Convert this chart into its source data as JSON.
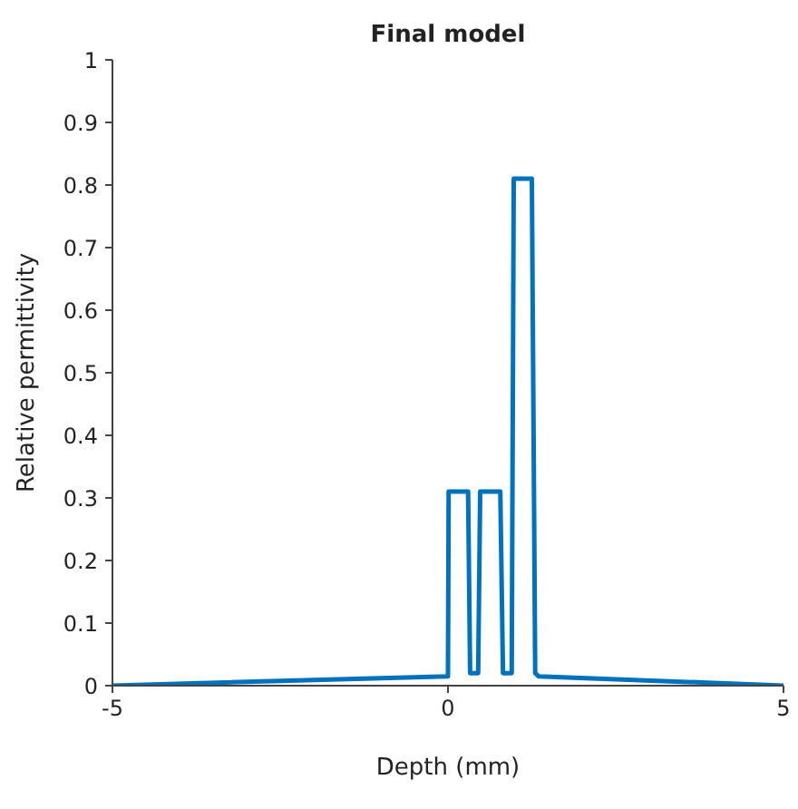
{
  "chart_data": {
    "type": "line",
    "title": "Final model",
    "xlabel": "Depth (mm)",
    "ylabel": "Relative permittivity",
    "x": [
      -5,
      0,
      0.01,
      0.3,
      0.33,
      0.45,
      0.48,
      0.78,
      0.82,
      0.95,
      0.98,
      1.25,
      1.3,
      1.35,
      5
    ],
    "series": [
      {
        "color": "#0072bd",
        "values": [
          0,
          0.015,
          0.31,
          0.31,
          0.02,
          0.02,
          0.31,
          0.31,
          0.02,
          0.02,
          0.81,
          0.81,
          0.02,
          0.015,
          0
        ]
      }
    ],
    "xlim": [
      -5,
      5
    ],
    "xticks": [
      -5,
      0,
      5
    ],
    "ylim": [
      0,
      1
    ],
    "yticks": [
      0,
      0.1,
      0.2,
      0.3,
      0.4,
      0.5,
      0.6,
      0.7,
      0.8,
      0.9,
      1
    ],
    "grid": false,
    "legend": false,
    "marker": "none",
    "line_style": "solid"
  }
}
